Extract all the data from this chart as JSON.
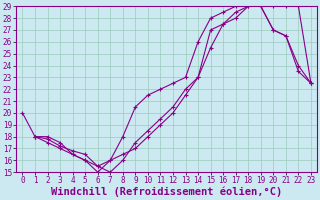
{
  "xlabel": "Windchill (Refroidissement éolien,°C)",
  "bg_color": "#cce8f0",
  "plot_bg_color": "#cce8f0",
  "line_color": "#880088",
  "grid_color": "#99ccbb",
  "xlim": [
    -0.5,
    23.5
  ],
  "ylim": [
    15,
    29
  ],
  "xticks": [
    0,
    1,
    2,
    3,
    4,
    5,
    6,
    7,
    8,
    9,
    10,
    11,
    12,
    13,
    14,
    15,
    16,
    17,
    18,
    19,
    20,
    21,
    22,
    23
  ],
  "yticks": [
    15,
    16,
    17,
    18,
    19,
    20,
    21,
    22,
    23,
    24,
    25,
    26,
    27,
    28,
    29
  ],
  "line1_x": [
    0,
    1,
    2,
    3,
    4,
    5,
    6,
    7,
    8,
    9,
    10,
    11,
    12,
    13,
    14,
    15,
    16,
    17,
    18,
    19,
    20,
    21,
    22,
    23
  ],
  "line1_y": [
    20,
    18,
    18,
    17.5,
    16.5,
    16,
    15,
    16,
    18,
    20.5,
    21.5,
    22,
    22.5,
    23,
    26,
    28,
    28.5,
    29,
    29.5,
    29.5,
    29,
    29,
    29,
    22.5
  ],
  "line2_x": [
    1,
    2,
    3,
    4,
    5,
    6,
    7,
    8,
    9,
    10,
    11,
    12,
    13,
    14,
    15,
    16,
    17,
    18,
    19,
    20,
    21,
    22,
    23
  ],
  "line2_y": [
    18,
    17.8,
    17.2,
    16.8,
    16.5,
    15.5,
    15,
    16,
    17.5,
    18.5,
    19.5,
    20.5,
    22,
    23,
    27,
    27.5,
    28,
    29,
    29,
    27,
    26.5,
    24,
    22.5
  ],
  "line3_x": [
    1,
    2,
    3,
    4,
    5,
    6,
    7,
    8,
    9,
    10,
    11,
    12,
    13,
    14,
    15,
    16,
    17,
    18,
    19,
    20,
    21,
    22,
    23
  ],
  "line3_y": [
    18,
    17.5,
    17,
    16.5,
    16,
    15.5,
    16,
    16.5,
    17,
    18,
    19,
    20,
    21.5,
    23,
    25.5,
    27.5,
    28.5,
    29,
    29,
    27,
    26.5,
    23.5,
    22.5
  ],
  "font_name": "monospace",
  "tick_fontsize": 5.5,
  "xlabel_fontsize": 7.5
}
